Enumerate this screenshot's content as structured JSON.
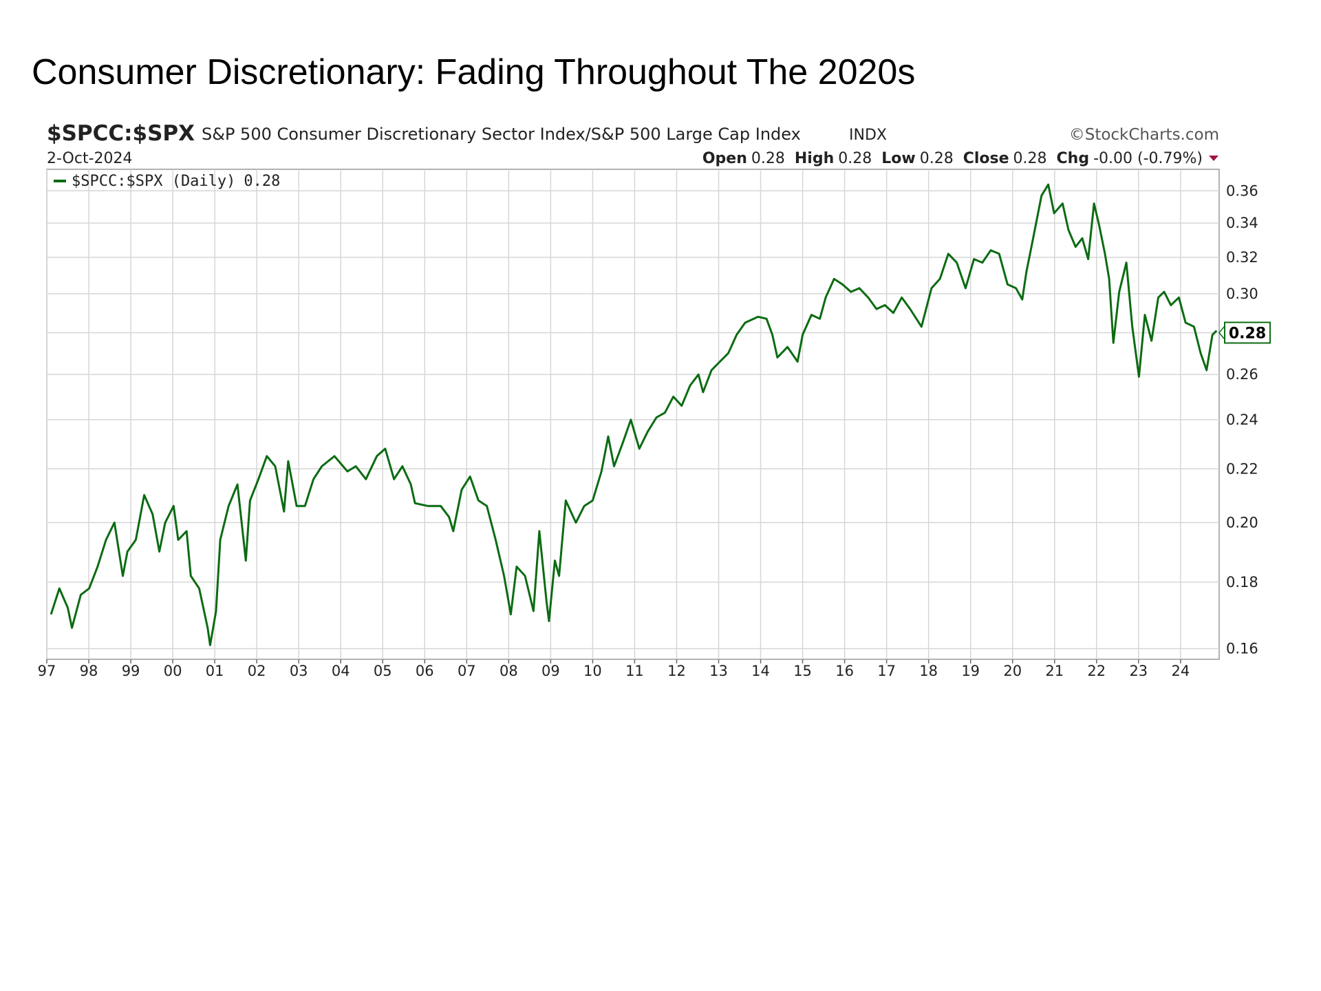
{
  "chart_data": {
    "type": "line",
    "title": "Consumer Discretionary: Fading Throughout The 2020s",
    "symbol": "$SPCC:$SPX",
    "description": "S&P 500 Consumer Discretionary Sector Index/S&P 500 Large Cap Index",
    "exchange": "INDX",
    "source": "©StockCharts.com",
    "date": "2-Oct-2024",
    "stats": [
      {
        "label": "Open",
        "value": 0.28
      },
      {
        "label": "High",
        "value": 0.28
      },
      {
        "label": "Low",
        "value": 0.28
      },
      {
        "label": "Close",
        "value": 0.28
      },
      {
        "label": "Chg",
        "value": "-0.00 (-0.79%)"
      }
    ],
    "last_value": 0.28,
    "log_y": true,
    "grid": true,
    "x": [
      1997.1,
      1997.3,
      1997.5,
      1997.6,
      1997.81,
      1998.01,
      1998.21,
      1998.41,
      1998.61,
      1998.81,
      1998.92,
      1999.12,
      1999.32,
      1999.52,
      1999.68,
      1999.82,
      2000.02,
      2000.13,
      2000.33,
      2000.43,
      2000.63,
      2000.83,
      2000.89,
      2001.03,
      2001.13,
      2001.33,
      2001.54,
      2001.74,
      2001.84,
      2002.04,
      2002.24,
      2002.44,
      2002.65,
      2002.75,
      2002.95,
      2003.15,
      2003.35,
      2003.55,
      2003.85,
      2004.16,
      2004.36,
      2004.6,
      2004.86,
      2005.06,
      2005.27,
      2005.47,
      2005.67,
      2005.77,
      2006.07,
      2006.38,
      2006.58,
      2006.68,
      2006.88,
      2007.08,
      2007.28,
      2007.48,
      2007.69,
      2007.89,
      2008.05,
      2008.19,
      2008.39,
      2008.59,
      2008.73,
      2008.9,
      2008.96,
      2009.1,
      2009.2,
      2009.36,
      2009.6,
      2009.8,
      2010.0,
      2010.21,
      2010.37,
      2010.51,
      2010.71,
      2010.91,
      2011.11,
      2011.31,
      2011.52,
      2011.72,
      2011.92,
      2012.12,
      2012.32,
      2012.52,
      2012.63,
      2012.83,
      2013.03,
      2013.23,
      2013.43,
      2013.63,
      2013.94,
      2014.14,
      2014.28,
      2014.4,
      2014.64,
      2014.88,
      2015.0,
      2015.21,
      2015.41,
      2015.55,
      2015.75,
      2015.95,
      2016.15,
      2016.35,
      2016.56,
      2016.76,
      2016.96,
      2017.16,
      2017.36,
      2017.56,
      2017.83,
      2018.07,
      2018.27,
      2018.47,
      2018.67,
      2018.88,
      2019.08,
      2019.28,
      2019.48,
      2019.68,
      2019.88,
      2020.08,
      2020.23,
      2020.33,
      2020.49,
      2020.69,
      2020.85,
      2020.99,
      2021.19,
      2021.33,
      2021.5,
      2021.66,
      2021.8,
      2021.94,
      2022.06,
      2022.2,
      2022.3,
      2022.4,
      2022.54,
      2022.71,
      2022.85,
      2023.01,
      2023.15,
      2023.31,
      2023.47,
      2023.61,
      2023.77,
      2023.96,
      2024.12,
      2024.32,
      2024.48,
      2024.62,
      2024.76,
      2024.86
    ],
    "series": [
      {
        "name": "$SPCC:$SPX (Daily)",
        "color": "#0b6b12",
        "values": [
          0.17,
          0.178,
          0.172,
          0.166,
          0.176,
          0.178,
          0.185,
          0.194,
          0.2,
          0.182,
          0.19,
          0.194,
          0.21,
          0.203,
          0.19,
          0.2,
          0.206,
          0.194,
          0.197,
          0.182,
          0.178,
          0.166,
          0.161,
          0.171,
          0.194,
          0.206,
          0.214,
          0.187,
          0.208,
          0.216,
          0.225,
          0.221,
          0.204,
          0.223,
          0.206,
          0.206,
          0.216,
          0.221,
          0.225,
          0.219,
          0.221,
          0.216,
          0.225,
          0.228,
          0.216,
          0.221,
          0.214,
          0.207,
          0.206,
          0.206,
          0.202,
          0.197,
          0.212,
          0.217,
          0.208,
          0.206,
          0.194,
          0.182,
          0.17,
          0.185,
          0.182,
          0.171,
          0.197,
          0.174,
          0.168,
          0.187,
          0.182,
          0.208,
          0.2,
          0.206,
          0.208,
          0.219,
          0.233,
          0.221,
          0.23,
          0.24,
          0.228,
          0.235,
          0.241,
          0.243,
          0.25,
          0.246,
          0.255,
          0.26,
          0.252,
          0.262,
          0.266,
          0.27,
          0.279,
          0.285,
          0.288,
          0.287,
          0.279,
          0.268,
          0.273,
          0.266,
          0.279,
          0.289,
          0.287,
          0.298,
          0.308,
          0.305,
          0.301,
          0.303,
          0.298,
          0.292,
          0.294,
          0.29,
          0.298,
          0.292,
          0.283,
          0.303,
          0.308,
          0.322,
          0.317,
          0.303,
          0.319,
          0.317,
          0.324,
          0.322,
          0.305,
          0.303,
          0.297,
          0.312,
          0.331,
          0.357,
          0.364,
          0.346,
          0.352,
          0.336,
          0.326,
          0.331,
          0.319,
          0.352,
          0.339,
          0.322,
          0.308,
          0.275,
          0.301,
          0.317,
          0.283,
          0.259,
          0.289,
          0.276,
          0.298,
          0.301,
          0.294,
          0.298,
          0.285,
          0.283,
          0.27,
          0.262,
          0.279,
          0.281
        ]
      }
    ],
    "xlim": [
      1997,
      2024.92
    ],
    "ylim": [
      0.157,
      0.374
    ],
    "yticks": [
      0.16,
      0.18,
      {
        "value": 0.2,
        "label": "0.20"
      },
      0.22,
      0.24,
      0.26,
      0.28,
      {
        "value": 0.3,
        "label": "0.30"
      },
      0.32,
      0.34,
      0.36
    ],
    "xticks": [
      {
        "value": 1997,
        "label": "97"
      },
      {
        "value": 1998,
        "label": "98"
      },
      {
        "value": 1999,
        "label": "99"
      },
      {
        "value": 2000,
        "label": "00"
      },
      {
        "value": 2001,
        "label": "01"
      },
      {
        "value": 2002,
        "label": "02"
      },
      {
        "value": 2003,
        "label": "03"
      },
      {
        "value": 2004,
        "label": "04"
      },
      {
        "value": 2005,
        "label": "05"
      },
      {
        "value": 2006,
        "label": "06"
      },
      {
        "value": 2007,
        "label": "07"
      },
      {
        "value": 2008,
        "label": "08"
      },
      {
        "value": 2009,
        "label": "09"
      },
      {
        "value": 2010,
        "label": "10"
      },
      {
        "value": 2011,
        "label": "11"
      },
      {
        "value": 2012,
        "label": "12"
      },
      {
        "value": 2013,
        "label": "13"
      },
      {
        "value": 2014,
        "label": "14"
      },
      {
        "value": 2015,
        "label": "15"
      },
      {
        "value": 2016,
        "label": "16"
      },
      {
        "value": 2017,
        "label": "17"
      },
      {
        "value": 2018,
        "label": "18"
      },
      {
        "value": 2019,
        "label": "19"
      },
      {
        "value": 2020,
        "label": "20"
      },
      {
        "value": 2021,
        "label": "21"
      },
      {
        "value": 2022,
        "label": "22"
      },
      {
        "value": 2023,
        "label": "23"
      },
      {
        "value": 2024,
        "label": "24"
      }
    ]
  }
}
